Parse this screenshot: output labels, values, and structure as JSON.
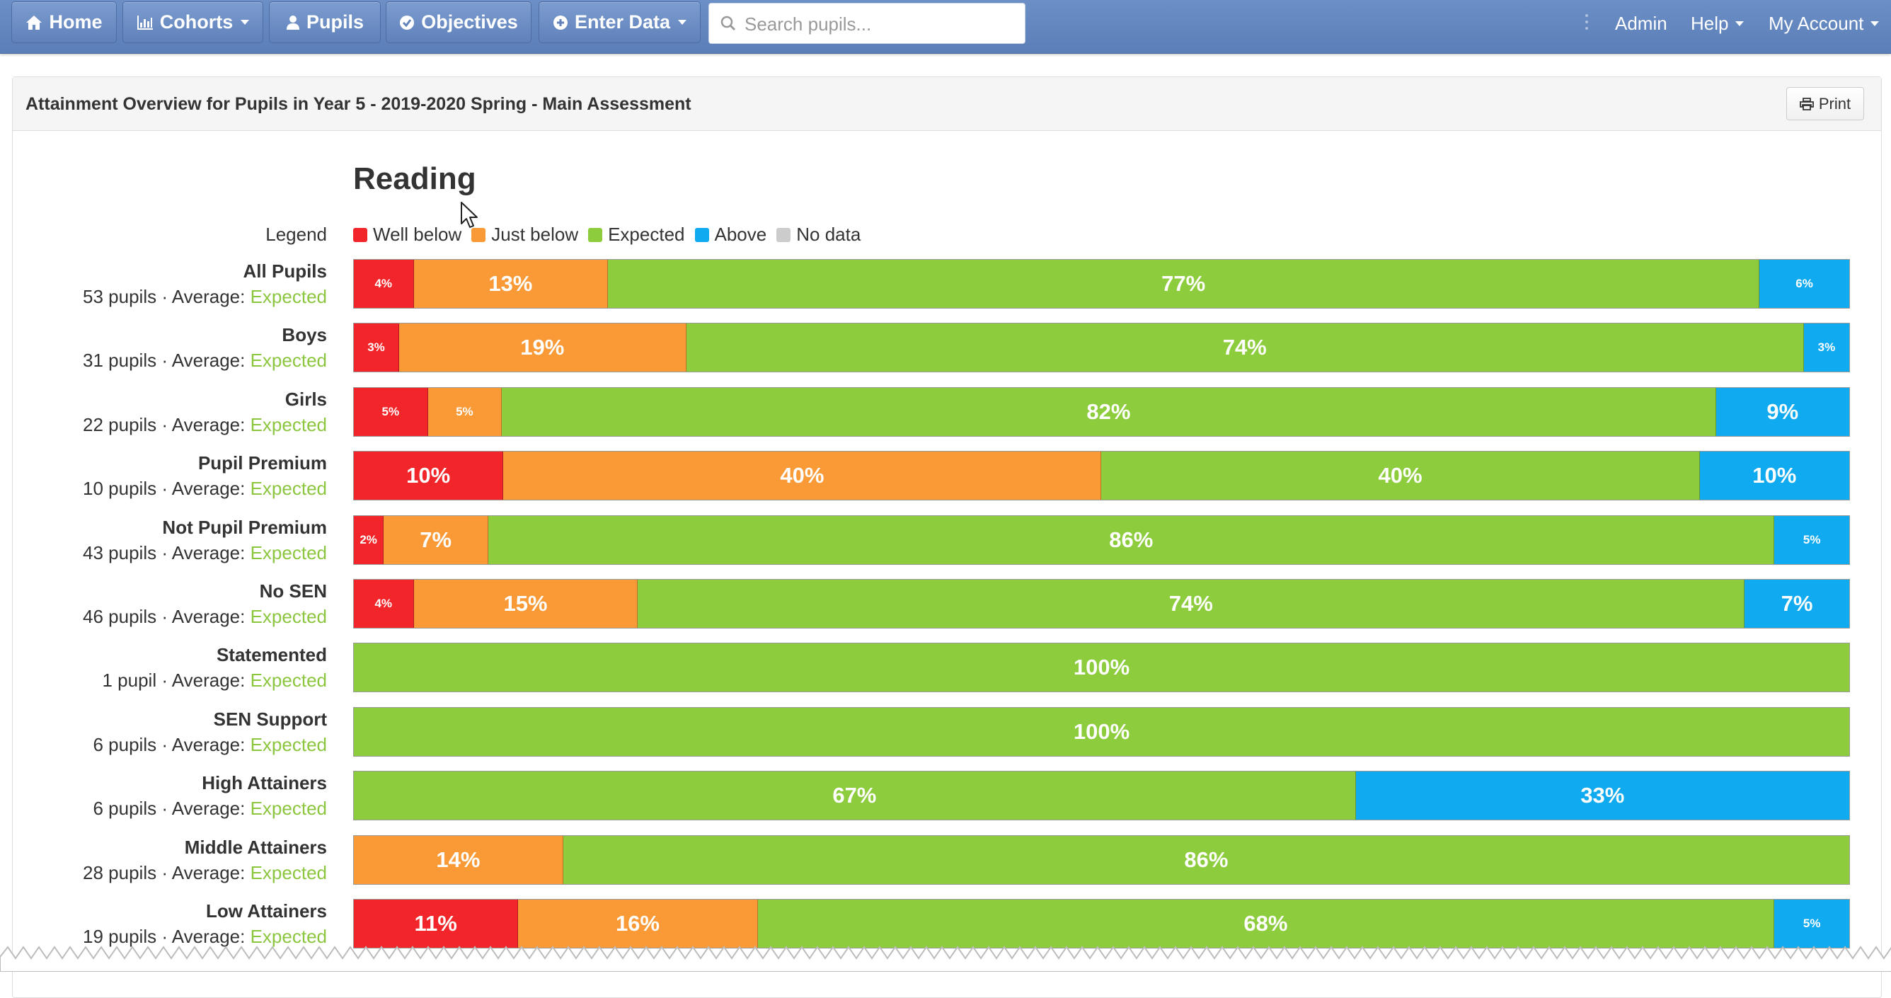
{
  "navbar": {
    "home": "Home",
    "cohorts": "Cohorts",
    "pupils": "Pupils",
    "objectives": "Objectives",
    "enter_data": "Enter Data",
    "search_placeholder": "Search pupils...",
    "admin": "Admin",
    "help": "Help",
    "my_account": "My Account",
    "icons": [
      "home-icon",
      "bar-chart-icon",
      "user-icon",
      "check-circle-icon",
      "plus-circle-icon",
      "search-icon"
    ]
  },
  "panel": {
    "title": "Attainment Overview for Pupils in Year 5 - 2019-2020 Spring - Main Assessment",
    "print_label": "Print"
  },
  "chart_data": {
    "type": "bar",
    "title": "Reading",
    "legend_label": "Legend",
    "stacked": true,
    "orientation": "horizontal",
    "series": [
      {
        "name": "Well below",
        "color": "#f2262a"
      },
      {
        "name": "Just below",
        "color": "#f99a36"
      },
      {
        "name": "Expected",
        "color": "#8dcd3d"
      },
      {
        "name": "Above",
        "color": "#10aaf0"
      },
      {
        "name": "No data",
        "color": "#cccccc"
      }
    ],
    "rows": [
      {
        "name": "All Pupils",
        "sub": "53 pupils · Average: ",
        "average": "Expected",
        "segments": [
          {
            "s": 0,
            "v": 4,
            "label": "4%"
          },
          {
            "s": 1,
            "v": 13,
            "label": "13%"
          },
          {
            "s": 2,
            "v": 77,
            "label": "77%"
          },
          {
            "s": 3,
            "v": 6,
            "label": "6%"
          }
        ]
      },
      {
        "name": "Boys",
        "sub": "31 pupils · Average: ",
        "average": "Expected",
        "segments": [
          {
            "s": 0,
            "v": 3,
            "label": "3%"
          },
          {
            "s": 1,
            "v": 19,
            "label": "19%"
          },
          {
            "s": 2,
            "v": 74,
            "label": "74%"
          },
          {
            "s": 3,
            "v": 3,
            "label": "3%"
          }
        ]
      },
      {
        "name": "Girls",
        "sub": "22 pupils · Average: ",
        "average": "Expected",
        "segments": [
          {
            "s": 0,
            "v": 5,
            "label": "5%"
          },
          {
            "s": 1,
            "v": 5,
            "label": "5%"
          },
          {
            "s": 2,
            "v": 82,
            "label": "82%"
          },
          {
            "s": 3,
            "v": 9,
            "label": "9%"
          }
        ]
      },
      {
        "name": "Pupil Premium",
        "sub": "10 pupils · Average: ",
        "average": "Expected",
        "segments": [
          {
            "s": 0,
            "v": 10,
            "label": "10%"
          },
          {
            "s": 1,
            "v": 40,
            "label": "40%"
          },
          {
            "s": 2,
            "v": 40,
            "label": "40%"
          },
          {
            "s": 3,
            "v": 10,
            "label": "10%"
          }
        ]
      },
      {
        "name": "Not Pupil Premium",
        "sub": "43 pupils · Average: ",
        "average": "Expected",
        "segments": [
          {
            "s": 0,
            "v": 2,
            "label": "2%"
          },
          {
            "s": 1,
            "v": 7,
            "label": "7%"
          },
          {
            "s": 2,
            "v": 86,
            "label": "86%"
          },
          {
            "s": 3,
            "v": 5,
            "label": "5%"
          }
        ]
      },
      {
        "name": "No SEN",
        "sub": "46 pupils · Average: ",
        "average": "Expected",
        "segments": [
          {
            "s": 0,
            "v": 4,
            "label": "4%"
          },
          {
            "s": 1,
            "v": 15,
            "label": "15%"
          },
          {
            "s": 2,
            "v": 74,
            "label": "74%"
          },
          {
            "s": 3,
            "v": 7,
            "label": "7%"
          }
        ]
      },
      {
        "name": "Statemented",
        "sub": "1 pupil · Average: ",
        "average": "Expected",
        "segments": [
          {
            "s": 2,
            "v": 100,
            "label": "100%"
          }
        ]
      },
      {
        "name": "SEN Support",
        "sub": "6 pupils · Average: ",
        "average": "Expected",
        "segments": [
          {
            "s": 2,
            "v": 100,
            "label": "100%"
          }
        ]
      },
      {
        "name": "High Attainers",
        "sub": "6 pupils · Average: ",
        "average": "Expected",
        "segments": [
          {
            "s": 2,
            "v": 67,
            "label": "67%"
          },
          {
            "s": 3,
            "v": 33,
            "label": "33%"
          }
        ]
      },
      {
        "name": "Middle Attainers",
        "sub": "28 pupils · Average: ",
        "average": "Expected",
        "segments": [
          {
            "s": 1,
            "v": 14,
            "label": "14%"
          },
          {
            "s": 2,
            "v": 86,
            "label": "86%"
          }
        ]
      },
      {
        "name": "Low Attainers",
        "sub": "19 pupils · Average: ",
        "average": "Expected",
        "segments": [
          {
            "s": 0,
            "v": 11,
            "label": "11%"
          },
          {
            "s": 1,
            "v": 16,
            "label": "16%"
          },
          {
            "s": 2,
            "v": 68,
            "label": "68%"
          },
          {
            "s": 3,
            "v": 5,
            "label": "5%"
          }
        ]
      }
    ]
  }
}
